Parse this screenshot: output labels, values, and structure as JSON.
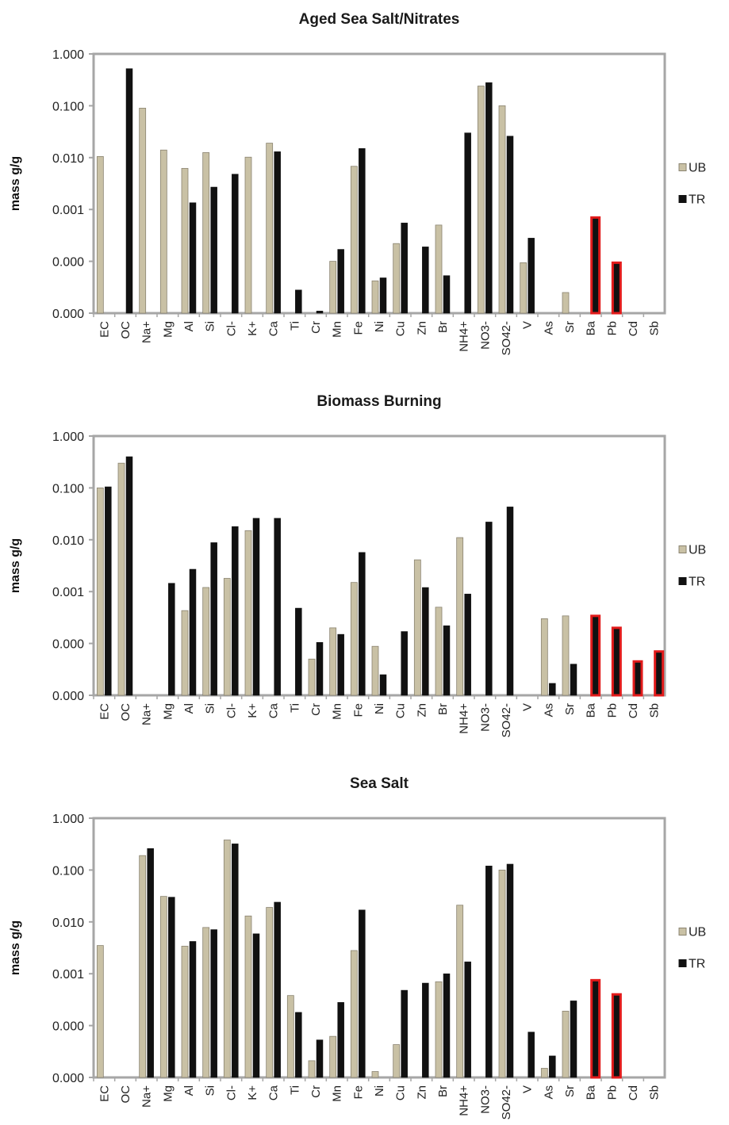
{
  "colors": {
    "ub": "#c9c1a5",
    "ub_edge": "#8a8370",
    "tr": "#111111",
    "highlight": "#e21b1b",
    "frame": "#a6a6a6"
  },
  "chart_data": [
    {
      "type": "bar",
      "title": "Aged Sea Salt/Nitrates",
      "ylabel": "mass g/g",
      "scale": "log",
      "ylim": [
        1e-05,
        1
      ],
      "yticks": [
        1e-05,
        0.0001,
        0.001,
        0.01,
        0.1,
        1
      ],
      "yticklabels": [
        "0.000",
        "0.000",
        "0.001",
        "0.010",
        "0.100",
        "1.000"
      ],
      "legend_position": "right",
      "categories": [
        "EC",
        "OC",
        "Na+",
        "Mg",
        "Al",
        "Si",
        "Cl-",
        "K+",
        "Ca",
        "Ti",
        "Cr",
        "Mn",
        "Fe",
        "Ni",
        "Cu",
        "Zn",
        "Br",
        "NH4+",
        "NO3-",
        "SO42-",
        "V",
        "As",
        "Sr",
        "Ba",
        "Pb",
        "Cd",
        "Sb"
      ],
      "highlight_categories": [
        "Ba",
        "Pb"
      ],
      "series": [
        {
          "name": "UB",
          "values": [
            0.0105,
            null,
            0.09,
            0.014,
            0.0062,
            0.0125,
            null,
            0.0102,
            0.019,
            null,
            null,
            0.0001,
            0.0068,
            4.2e-05,
            0.00022,
            null,
            0.0005,
            null,
            0.24,
            0.1,
            9.4e-05,
            1e-05,
            2.5e-05,
            null,
            null,
            null,
            null
          ]
        },
        {
          "name": "TR",
          "values": [
            null,
            0.52,
            null,
            null,
            0.00135,
            0.0027,
            0.0048,
            null,
            0.013,
            2.8e-05,
            1.1e-05,
            0.00017,
            0.015,
            4.8e-05,
            0.00055,
            0.00019,
            5.3e-05,
            0.03,
            0.28,
            0.026,
            0.00028,
            null,
            null,
            0.0007,
            9.4e-05,
            null,
            null
          ]
        }
      ]
    },
    {
      "type": "bar",
      "title": "Biomass Burning",
      "ylabel": "mass g/g",
      "scale": "log",
      "ylim": [
        1e-05,
        1
      ],
      "yticks": [
        1e-05,
        0.0001,
        0.001,
        0.01,
        0.1,
        1
      ],
      "yticklabels": [
        "0.000",
        "0.000",
        "0.001",
        "0.010",
        "0.100",
        "1.000"
      ],
      "legend_position": "right",
      "categories": [
        "EC",
        "OC",
        "Na+",
        "Mg",
        "Al",
        "Si",
        "Cl-",
        "K+",
        "Ca",
        "Ti",
        "Cr",
        "Mn",
        "Fe",
        "Ni",
        "Cu",
        "Zn",
        "Br",
        "NH4+",
        "NO3-",
        "SO42-",
        "V",
        "As",
        "Sr",
        "Ba",
        "Pb",
        "Cd",
        "Sb"
      ],
      "highlight_categories": [
        "Ba",
        "Pb",
        "Cd",
        "Sb"
      ],
      "series": [
        {
          "name": "UB",
          "values": [
            0.1,
            0.3,
            null,
            null,
            0.00043,
            0.0012,
            0.0018,
            0.015,
            null,
            null,
            5e-05,
            0.0002,
            0.0015,
            8.8e-05,
            null,
            0.0041,
            0.0005,
            0.011,
            null,
            null,
            null,
            0.0003,
            0.00034,
            null,
            null,
            null,
            null
          ]
        },
        {
          "name": "TR",
          "values": [
            0.105,
            0.4,
            null,
            0.00145,
            0.0027,
            0.0088,
            0.018,
            0.026,
            0.026,
            0.00048,
            0.000105,
            0.00015,
            0.0057,
            2.5e-05,
            0.00017,
            0.0012,
            0.00022,
            0.0009,
            0.022,
            0.043,
            null,
            1.7e-05,
            4e-05,
            0.00034,
            0.0002,
            4.5e-05,
            7e-05
          ]
        }
      ]
    },
    {
      "type": "bar",
      "title": "Sea Salt",
      "ylabel": "mass g/g",
      "scale": "log",
      "ylim": [
        1e-05,
        1
      ],
      "yticks": [
        1e-05,
        0.0001,
        0.001,
        0.01,
        0.1,
        1
      ],
      "yticklabels": [
        "0.000",
        "0.000",
        "0.001",
        "0.010",
        "0.100",
        "1.000"
      ],
      "legend_position": "right",
      "categories": [
        "EC",
        "OC",
        "Na+",
        "Mg",
        "Al",
        "Si",
        "Cl-",
        "K+",
        "Ca",
        "Ti",
        "Cr",
        "Mn",
        "Fe",
        "Ni",
        "Cu",
        "Zn",
        "Br",
        "NH4+",
        "NO3-",
        "SO42-",
        "V",
        "As",
        "Sr",
        "Ba",
        "Pb",
        "Cd",
        "Sb"
      ],
      "highlight_categories": [
        "Ba",
        "Pb"
      ],
      "series": [
        {
          "name": "UB",
          "values": [
            0.0035,
            null,
            0.19,
            0.031,
            0.0034,
            0.0078,
            0.38,
            0.013,
            0.019,
            0.00038,
            2.1e-05,
            6.2e-05,
            0.0028,
            1.3e-05,
            4.3e-05,
            null,
            0.0007,
            0.021,
            null,
            0.1,
            null,
            1.5e-05,
            0.00019,
            null,
            null,
            null,
            null
          ]
        },
        {
          "name": "TR",
          "values": [
            null,
            null,
            0.26,
            0.03,
            0.0042,
            0.0071,
            0.32,
            0.0059,
            0.024,
            0.00018,
            5.3e-05,
            0.00028,
            0.017,
            null,
            0.00048,
            0.00066,
            0.001,
            0.0017,
            0.12,
            0.13,
            7.5e-05,
            2.6e-05,
            0.0003,
            0.00075,
            0.0004,
            null,
            null
          ]
        }
      ]
    }
  ]
}
